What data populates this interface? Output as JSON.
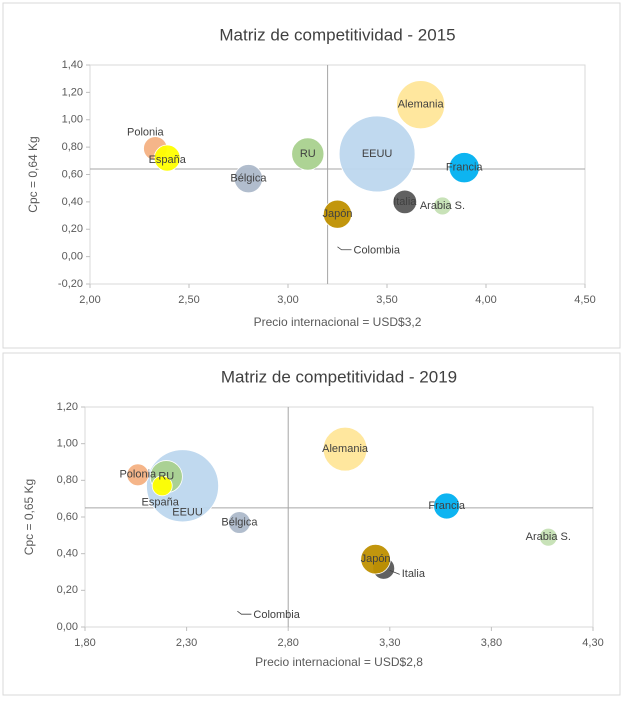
{
  "chart_data": [
    {
      "type": "bubble",
      "title": "Matriz de competitividad - 2015",
      "x_label": "Precio internacional = USD$3,2",
      "y_label": "Cpc = 0,64 Kg",
      "xlim": [
        2.0,
        4.5
      ],
      "ylim": [
        -0.2,
        1.4
      ],
      "xticks": [
        {
          "value": 2.0,
          "label": "2,00"
        },
        {
          "value": 2.5,
          "label": "2,50"
        },
        {
          "value": 3.0,
          "label": "3,00"
        },
        {
          "value": 3.5,
          "label": "3,50"
        },
        {
          "value": 4.0,
          "label": "4,00"
        },
        {
          "value": 4.5,
          "label": "4,50"
        }
      ],
      "yticks": [
        {
          "value": -0.2,
          "label": "-0,20"
        },
        {
          "value": 0.0,
          "label": "0,00"
        },
        {
          "value": 0.2,
          "label": "0,20"
        },
        {
          "value": 0.4,
          "label": "0,40"
        },
        {
          "value": 0.6,
          "label": "0,60"
        },
        {
          "value": 0.8,
          "label": "0,80"
        },
        {
          "value": 1.0,
          "label": "1,00"
        },
        {
          "value": 1.2,
          "label": "1,20"
        },
        {
          "value": 1.4,
          "label": "1,40"
        }
      ],
      "x_reference": 3.2,
      "y_reference": 0.64,
      "categories": [
        "EEUU",
        "Alemania",
        "Polonia",
        "España",
        "Bélgica",
        "RU",
        "Francia",
        "Italia",
        "Arabia S.",
        "Japón",
        "Colombia"
      ],
      "x": [
        3.45,
        3.67,
        2.33,
        2.39,
        2.8,
        3.1,
        3.89,
        3.59,
        3.78,
        3.25,
        3.25
      ],
      "values": [
        0.75,
        1.11,
        0.79,
        0.72,
        0.57,
        0.75,
        0.65,
        0.4,
        0.37,
        0.31,
        0.05
      ],
      "sizes": [
        14.4,
        5.8,
        1.4,
        1.7,
        2.0,
        2.6,
        2.3,
        1.4,
        0.8,
        2.0,
        0.0
      ],
      "colors": [
        "#bdd7ee",
        "#ffe699",
        "#f4b183",
        "#ffff00",
        "#adb9ca",
        "#a9d18e",
        "#00b0f0",
        "#595959",
        "#c5e0b4",
        "#bf9000",
        "#7f7f7f"
      ]
    },
    {
      "type": "bubble",
      "title": "Matriz de competitividad - 2019",
      "x_label": "Precio internacional = USD$2,8",
      "y_label": "Cpc = 0,65 Kg",
      "xlim": [
        1.8,
        4.3
      ],
      "ylim": [
        0.0,
        1.2
      ],
      "xticks": [
        {
          "value": 1.8,
          "label": "1,80"
        },
        {
          "value": 2.3,
          "label": "2,30"
        },
        {
          "value": 2.8,
          "label": "2,80"
        },
        {
          "value": 3.3,
          "label": "3,30"
        },
        {
          "value": 3.8,
          "label": "3,80"
        },
        {
          "value": 4.3,
          "label": "4,30"
        }
      ],
      "yticks": [
        {
          "value": 0.0,
          "label": "0,00"
        },
        {
          "value": 0.2,
          "label": "0,20"
        },
        {
          "value": 0.4,
          "label": "0,40"
        },
        {
          "value": 0.6,
          "label": "0,60"
        },
        {
          "value": 0.8,
          "label": "0,80"
        },
        {
          "value": 1.0,
          "label": "1,00"
        },
        {
          "value": 1.2,
          "label": "1,20"
        }
      ],
      "x_reference": 2.8,
      "y_reference": 0.65,
      "categories": [
        "EEUU",
        "Polonia",
        "RU",
        "España",
        "Bélgica",
        "Alemania",
        "Francia",
        "Italia",
        "Japón",
        "Arabia S.",
        "Colombia"
      ],
      "x": [
        2.28,
        2.06,
        2.2,
        2.18,
        2.56,
        3.08,
        3.58,
        3.27,
        3.23,
        4.08,
        2.55
      ],
      "values": [
        0.77,
        0.83,
        0.82,
        0.77,
        0.57,
        0.97,
        0.66,
        0.32,
        0.37,
        0.49,
        0.07
      ],
      "sizes": [
        13.0,
        1.2,
        2.6,
        1.0,
        1.2,
        4.8,
        1.7,
        1.2,
        2.2,
        0.8,
        0.0
      ],
      "colors": [
        "#bdd7ee",
        "#f4b183",
        "#a9d18e",
        "#ffff00",
        "#adb9ca",
        "#ffe699",
        "#00b0f0",
        "#595959",
        "#bf9000",
        "#c5e0b4",
        "#7f7f7f"
      ]
    }
  ]
}
